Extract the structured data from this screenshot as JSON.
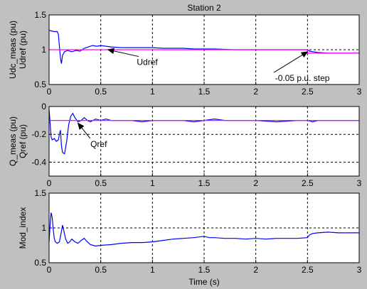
{
  "figure": {
    "title": "Station 2",
    "xlabel": "Time (s)",
    "colors": {
      "meas": "#0000ff",
      "ref": "#ff00ff",
      "background": "#c0c0c0",
      "axes": "#ffffff"
    }
  },
  "chart_data": [
    {
      "type": "line",
      "title": "Station 2",
      "ylabel": [
        "Udc_meas (pu)",
        "Udref (pu)"
      ],
      "xlabel": "",
      "xlim": [
        0,
        3
      ],
      "ylim": [
        0.5,
        1.5
      ],
      "xticks": [
        "0",
        "0.5",
        "1",
        "1.5",
        "2",
        "2.5",
        "3"
      ],
      "yticks": [
        "0.5",
        "1",
        "1.5"
      ],
      "grid": true,
      "series": [
        {
          "key": "meas",
          "color": "#0000ff",
          "points": [
            [
              0,
              1.28
            ],
            [
              0.02,
              1.27
            ],
            [
              0.05,
              1.26
            ],
            [
              0.08,
              1.26
            ],
            [
              0.09,
              1.22
            ],
            [
              0.1,
              1.05
            ],
            [
              0.11,
              0.88
            ],
            [
              0.12,
              0.8
            ],
            [
              0.13,
              0.92
            ],
            [
              0.15,
              0.97
            ],
            [
              0.18,
              0.99
            ],
            [
              0.22,
              0.97
            ],
            [
              0.26,
              0.99
            ],
            [
              0.3,
              0.98
            ],
            [
              0.34,
              1.02
            ],
            [
              0.38,
              1.04
            ],
            [
              0.42,
              1.06
            ],
            [
              0.46,
              1.05
            ],
            [
              0.5,
              1.06
            ],
            [
              0.55,
              1.05
            ],
            [
              0.6,
              1.04
            ],
            [
              0.7,
              1.03
            ],
            [
              0.8,
              1.03
            ],
            [
              0.9,
              1.03
            ],
            [
              1.0,
              1.03
            ],
            [
              1.1,
              1.02
            ],
            [
              1.2,
              1.02
            ],
            [
              1.3,
              1.02
            ],
            [
              1.4,
              1.01
            ],
            [
              1.5,
              1.01
            ],
            [
              1.6,
              1.01
            ],
            [
              1.8,
              1.0
            ],
            [
              2.0,
              1.0
            ],
            [
              2.2,
              1.0
            ],
            [
              2.4,
              1.0
            ],
            [
              2.5,
              1.0
            ],
            [
              2.52,
              0.98
            ],
            [
              2.55,
              0.97
            ],
            [
              2.6,
              0.96
            ],
            [
              2.7,
              0.95
            ],
            [
              2.8,
              0.95
            ],
            [
              2.9,
              0.95
            ],
            [
              3.0,
              0.95
            ]
          ]
        },
        {
          "key": "ref",
          "color": "#ff00ff",
          "points": [
            [
              0,
              1.0
            ],
            [
              2.5,
              1.0
            ],
            [
              2.5,
              0.95
            ],
            [
              3.0,
              0.95
            ]
          ]
        }
      ],
      "annotations": [
        {
          "text": "Udref",
          "x": 0.95,
          "y": 0.78,
          "arrow_to": [
            0.57,
            1.0
          ]
        },
        {
          "text": "-0.05 p.u. step",
          "x": 2.45,
          "y": 0.55,
          "arrow_to": [
            2.5,
            0.97
          ]
        }
      ]
    },
    {
      "type": "line",
      "title": "",
      "ylabel": [
        "Q_meas (pu)",
        "Qref (pu)"
      ],
      "xlabel": "",
      "xlim": [
        0,
        3
      ],
      "ylim": [
        -0.5,
        0
      ],
      "xticks": [
        "0",
        "0.5",
        "1",
        "1.5",
        "2",
        "2.5",
        "3"
      ],
      "yticks": [
        "-0.4",
        "-0.2",
        "0"
      ],
      "grid": true,
      "series": [
        {
          "key": "meas",
          "color": "#0000ff",
          "points": [
            [
              0,
              -0.02
            ],
            [
              0.01,
              -0.12
            ],
            [
              0.02,
              -0.22
            ],
            [
              0.03,
              -0.24
            ],
            [
              0.05,
              -0.23
            ],
            [
              0.07,
              -0.25
            ],
            [
              0.09,
              -0.24
            ],
            [
              0.1,
              -0.2
            ],
            [
              0.11,
              -0.17
            ],
            [
              0.12,
              -0.28
            ],
            [
              0.13,
              -0.33
            ],
            [
              0.15,
              -0.34
            ],
            [
              0.17,
              -0.25
            ],
            [
              0.19,
              -0.13
            ],
            [
              0.21,
              -0.07
            ],
            [
              0.23,
              -0.05
            ],
            [
              0.25,
              -0.08
            ],
            [
              0.28,
              -0.11
            ],
            [
              0.31,
              -0.1
            ],
            [
              0.34,
              -0.08
            ],
            [
              0.37,
              -0.1
            ],
            [
              0.4,
              -0.11
            ],
            [
              0.45,
              -0.09
            ],
            [
              0.5,
              -0.1
            ],
            [
              0.55,
              -0.09
            ],
            [
              0.6,
              -0.1
            ],
            [
              0.7,
              -0.1
            ],
            [
              0.8,
              -0.1
            ],
            [
              0.9,
              -0.11
            ],
            [
              1.0,
              -0.1
            ],
            [
              1.1,
              -0.1
            ],
            [
              1.2,
              -0.1
            ],
            [
              1.3,
              -0.1
            ],
            [
              1.4,
              -0.11
            ],
            [
              1.5,
              -0.1
            ],
            [
              1.6,
              -0.09
            ],
            [
              1.7,
              -0.1
            ],
            [
              1.8,
              -0.1
            ],
            [
              2.0,
              -0.1
            ],
            [
              2.2,
              -0.11
            ],
            [
              2.4,
              -0.1
            ],
            [
              2.5,
              -0.1
            ],
            [
              2.55,
              -0.11
            ],
            [
              2.6,
              -0.1
            ],
            [
              2.7,
              -0.1
            ],
            [
              2.8,
              -0.1
            ],
            [
              3.0,
              -0.1
            ]
          ]
        },
        {
          "key": "ref",
          "color": "#ff00ff",
          "points": [
            [
              0,
              -0.1
            ],
            [
              3.0,
              -0.1
            ]
          ]
        }
      ],
      "annotations": [
        {
          "text": "Qref",
          "x": 0.48,
          "y": -0.29,
          "arrow_to": [
            0.28,
            -0.12
          ]
        }
      ]
    },
    {
      "type": "line",
      "title": "",
      "ylabel": [
        "Mod_index"
      ],
      "xlabel": "Time (s)",
      "xlim": [
        0,
        3
      ],
      "ylim": [
        0.5,
        1.5
      ],
      "xticks": [
        "0",
        "0.5",
        "1",
        "1.5",
        "2",
        "2.5",
        "3"
      ],
      "yticks": [
        "0.5",
        "1",
        "1.5"
      ],
      "grid": true,
      "series": [
        {
          "key": "meas",
          "color": "#0000ff",
          "points": [
            [
              0,
              0.8
            ],
            [
              0.01,
              1.05
            ],
            [
              0.02,
              1.22
            ],
            [
              0.03,
              1.15
            ],
            [
              0.04,
              0.98
            ],
            [
              0.05,
              0.85
            ],
            [
              0.06,
              0.8
            ],
            [
              0.08,
              0.78
            ],
            [
              0.1,
              0.8
            ],
            [
              0.12,
              0.95
            ],
            [
              0.13,
              1.04
            ],
            [
              0.14,
              0.98
            ],
            [
              0.16,
              0.84
            ],
            [
              0.18,
              0.78
            ],
            [
              0.2,
              0.8
            ],
            [
              0.22,
              0.84
            ],
            [
              0.25,
              0.8
            ],
            [
              0.28,
              0.78
            ],
            [
              0.31,
              0.82
            ],
            [
              0.34,
              0.85
            ],
            [
              0.37,
              0.8
            ],
            [
              0.4,
              0.76
            ],
            [
              0.45,
              0.74
            ],
            [
              0.5,
              0.75
            ],
            [
              0.6,
              0.76
            ],
            [
              0.7,
              0.78
            ],
            [
              0.8,
              0.79
            ],
            [
              0.9,
              0.79
            ],
            [
              1.0,
              0.8
            ],
            [
              1.1,
              0.82
            ],
            [
              1.2,
              0.84
            ],
            [
              1.3,
              0.85
            ],
            [
              1.4,
              0.86
            ],
            [
              1.5,
              0.88
            ],
            [
              1.55,
              0.86
            ],
            [
              1.6,
              0.86
            ],
            [
              1.7,
              0.85
            ],
            [
              1.8,
              0.85
            ],
            [
              1.9,
              0.84
            ],
            [
              2.0,
              0.85
            ],
            [
              2.1,
              0.84
            ],
            [
              2.2,
              0.85
            ],
            [
              2.3,
              0.85
            ],
            [
              2.4,
              0.85
            ],
            [
              2.5,
              0.86
            ],
            [
              2.52,
              0.9
            ],
            [
              2.55,
              0.92
            ],
            [
              2.6,
              0.93
            ],
            [
              2.7,
              0.94
            ],
            [
              2.8,
              0.93
            ],
            [
              2.9,
              0.93
            ],
            [
              3.0,
              0.93
            ]
          ]
        }
      ],
      "annotations": []
    }
  ]
}
